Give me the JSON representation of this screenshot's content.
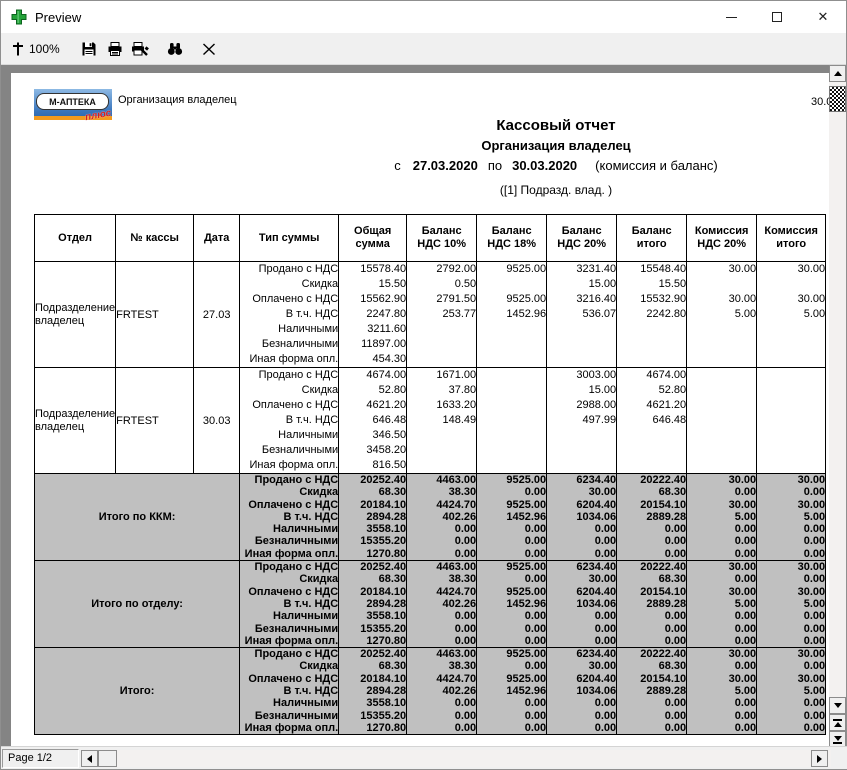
{
  "window": {
    "title": "Preview"
  },
  "toolbar": {
    "zoom_value": "100%"
  },
  "statusbar": {
    "page_indicator": "Page 1/2"
  },
  "report": {
    "logo": {
      "main": "М-АПТЕКА",
      "script": "плюс"
    },
    "org_label": "Организация владелец",
    "print_date_clipped": "30.0",
    "title": "Кассовый отчет",
    "subtitle": "Организация владелец",
    "period": {
      "from_label": "с",
      "date_from": "27.03.2020",
      "to_label": "по",
      "date_to": "30.03.2020",
      "note": "(комиссия и баланс)"
    },
    "filter_line": "([1] Подразд. влад. )",
    "table": {
      "headers": [
        "Отдел",
        "№ кассы",
        "Дата",
        "Тип суммы",
        "Общая сумма",
        "Баланс НДС 10%",
        "Баланс НДС 18%",
        "Баланс НДС 20%",
        "Баланс итого",
        "Комиссия НДС 20%",
        "Комиссия итого"
      ],
      "row_labels": [
        "Продано с НДС",
        "Скидка",
        "Оплачено с НДС",
        "В т.ч. НДС",
        "Наличными",
        "Безналичными",
        "Иная форма опл."
      ],
      "groups": [
        {
          "dept": "Подразделение владелец",
          "kassa": "FRTEST",
          "date": "27.03",
          "cols": [
            [
              "15578.40",
              "15.50",
              "15562.90",
              "2247.80",
              "3211.60",
              "11897.00",
              "454.30"
            ],
            [
              "2792.00",
              "0.50",
              "2791.50",
              "253.77",
              "",
              "",
              ""
            ],
            [
              "9525.00",
              "",
              "9525.00",
              "1452.96",
              "",
              "",
              ""
            ],
            [
              "3231.40",
              "15.00",
              "3216.40",
              "536.07",
              "",
              "",
              ""
            ],
            [
              "15548.40",
              "15.50",
              "15532.90",
              "2242.80",
              "",
              "",
              ""
            ],
            [
              "30.00",
              "",
              "30.00",
              "5.00",
              "",
              "",
              ""
            ],
            [
              "30.00",
              "",
              "30.00",
              "5.00",
              "",
              "",
              ""
            ]
          ]
        },
        {
          "dept": "Подразделение владелец",
          "kassa": "FRTEST",
          "date": "30.03",
          "cols": [
            [
              "4674.00",
              "52.80",
              "4621.20",
              "646.48",
              "346.50",
              "3458.20",
              "816.50"
            ],
            [
              "1671.00",
              "37.80",
              "1633.20",
              "148.49",
              "",
              "",
              ""
            ],
            [
              "",
              "",
              "",
              "",
              "",
              "",
              ""
            ],
            [
              "3003.00",
              "15.00",
              "2988.00",
              "497.99",
              "",
              "",
              ""
            ],
            [
              "4674.00",
              "52.80",
              "4621.20",
              "646.48",
              "",
              "",
              ""
            ],
            [
              "",
              "",
              "",
              "",
              "",
              "",
              ""
            ],
            [
              "",
              "",
              "",
              "",
              "",
              "",
              ""
            ]
          ]
        }
      ],
      "totals": {
        "labels": [
          "Итого по ККМ:",
          "Итого по отделу:",
          "Итого:"
        ],
        "cols": [
          [
            "20252.40",
            "68.30",
            "20184.10",
            "2894.28",
            "3558.10",
            "15355.20",
            "1270.80"
          ],
          [
            "4463.00",
            "38.30",
            "4424.70",
            "402.26",
            "0.00",
            "0.00",
            "0.00"
          ],
          [
            "9525.00",
            "0.00",
            "9525.00",
            "1452.96",
            "0.00",
            "0.00",
            "0.00"
          ],
          [
            "6234.40",
            "30.00",
            "6204.40",
            "1034.06",
            "0.00",
            "0.00",
            "0.00"
          ],
          [
            "20222.40",
            "68.30",
            "20154.10",
            "2889.28",
            "0.00",
            "0.00",
            "0.00"
          ],
          [
            "30.00",
            "0.00",
            "30.00",
            "5.00",
            "0.00",
            "0.00",
            "0.00"
          ],
          [
            "30.00",
            "0.00",
            "30.00",
            "5.00",
            "0.00",
            "0.00",
            "0.00"
          ]
        ]
      }
    }
  }
}
